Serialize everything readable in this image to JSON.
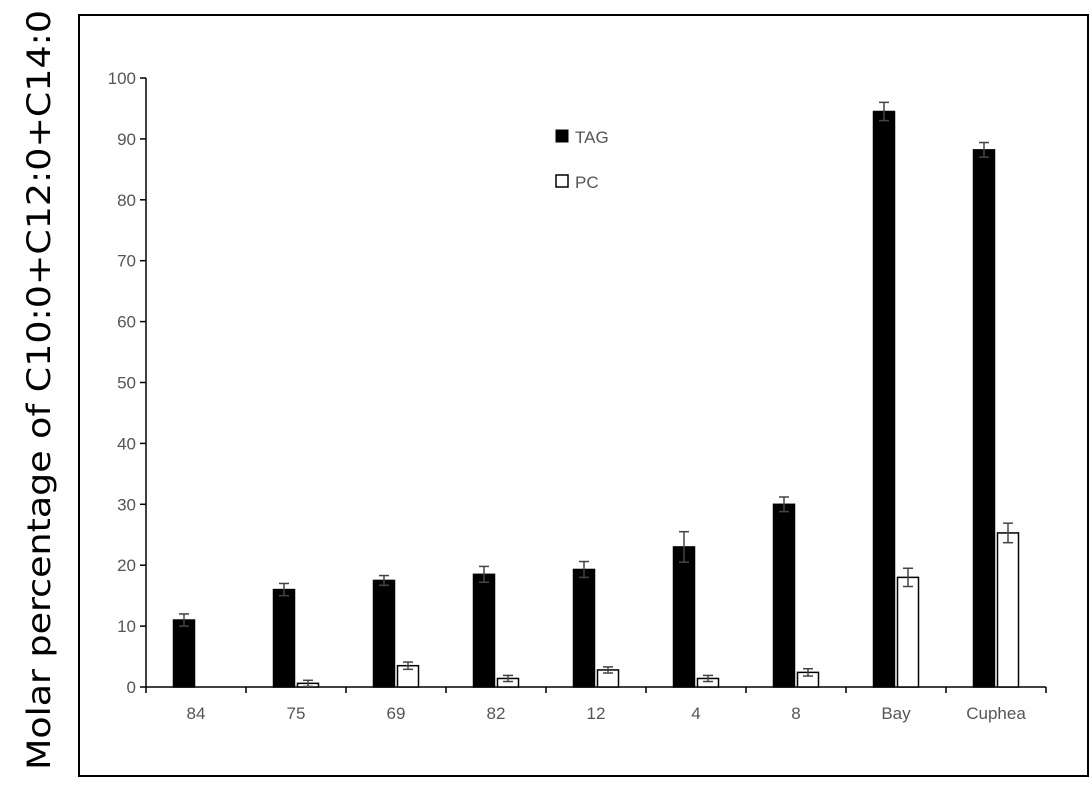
{
  "chart_data": {
    "type": "bar",
    "title": "",
    "xlabel": "",
    "ylabel": "Molar percentage of C10:0+C12:0+C14:0",
    "ylim": [
      0,
      100
    ],
    "yticks": [
      0,
      10,
      20,
      30,
      40,
      50,
      60,
      70,
      80,
      90,
      100
    ],
    "grid": false,
    "legend": "top-center",
    "categories": [
      "84",
      "75",
      "69",
      "82",
      "12",
      "4",
      "8",
      "Bay",
      "Cuphea"
    ],
    "series": [
      {
        "name": "TAG",
        "color": "#000000",
        "values": [
          11,
          16,
          17.5,
          18.5,
          19.3,
          23,
          30,
          94.5,
          88.2
        ],
        "errors": [
          1.0,
          1.0,
          0.8,
          1.3,
          1.3,
          2.5,
          1.2,
          1.5,
          1.2
        ]
      },
      {
        "name": "PC",
        "color": "#ffffff",
        "values": [
          0,
          0.6,
          3.5,
          1.4,
          2.8,
          1.4,
          2.4,
          18,
          25.3
        ],
        "errors": [
          0,
          0.5,
          0.6,
          0.5,
          0.5,
          0.5,
          0.6,
          1.5,
          1.6
        ]
      }
    ]
  }
}
